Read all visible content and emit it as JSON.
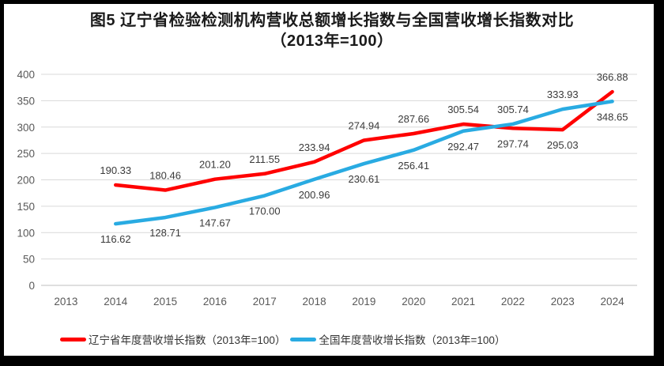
{
  "title": {
    "line1": "图5  辽宁省检验检测机构营收总额增长指数与全国营收增长指数对比",
    "line2": "（2013年=100）"
  },
  "chart_data": {
    "type": "line",
    "categories": [
      "2013",
      "2014",
      "2015",
      "2016",
      "2017",
      "2018",
      "2019",
      "2020",
      "2021",
      "2022",
      "2023",
      "2024"
    ],
    "series": [
      {
        "name": "辽宁省年度营收增长指数（2013年=100）",
        "color": "#FF0000",
        "values": [
          null,
          190.33,
          180.46,
          201.2,
          211.55,
          233.94,
          274.94,
          287.66,
          305.54,
          297.74,
          295.03,
          366.88
        ],
        "label_side": [
          null,
          "above",
          "above",
          "above",
          "above",
          "above",
          "above",
          "above",
          "above",
          "below",
          "below",
          "above"
        ]
      },
      {
        "name": "全国年度营收增长指数（2013年=100）",
        "color": "#29ABE2",
        "values": [
          null,
          116.62,
          128.71,
          147.67,
          170.0,
          200.96,
          230.61,
          256.41,
          292.47,
          305.74,
          333.93,
          348.65
        ],
        "label_side": [
          null,
          "below",
          "below",
          "below",
          "below",
          "below",
          "below",
          "below",
          "below",
          "above",
          "above",
          "below"
        ]
      }
    ],
    "ylim": [
      0,
      400
    ],
    "ytick_step": 50,
    "grid": true,
    "legend_position": "bottom",
    "value_label_format": "2dp"
  }
}
